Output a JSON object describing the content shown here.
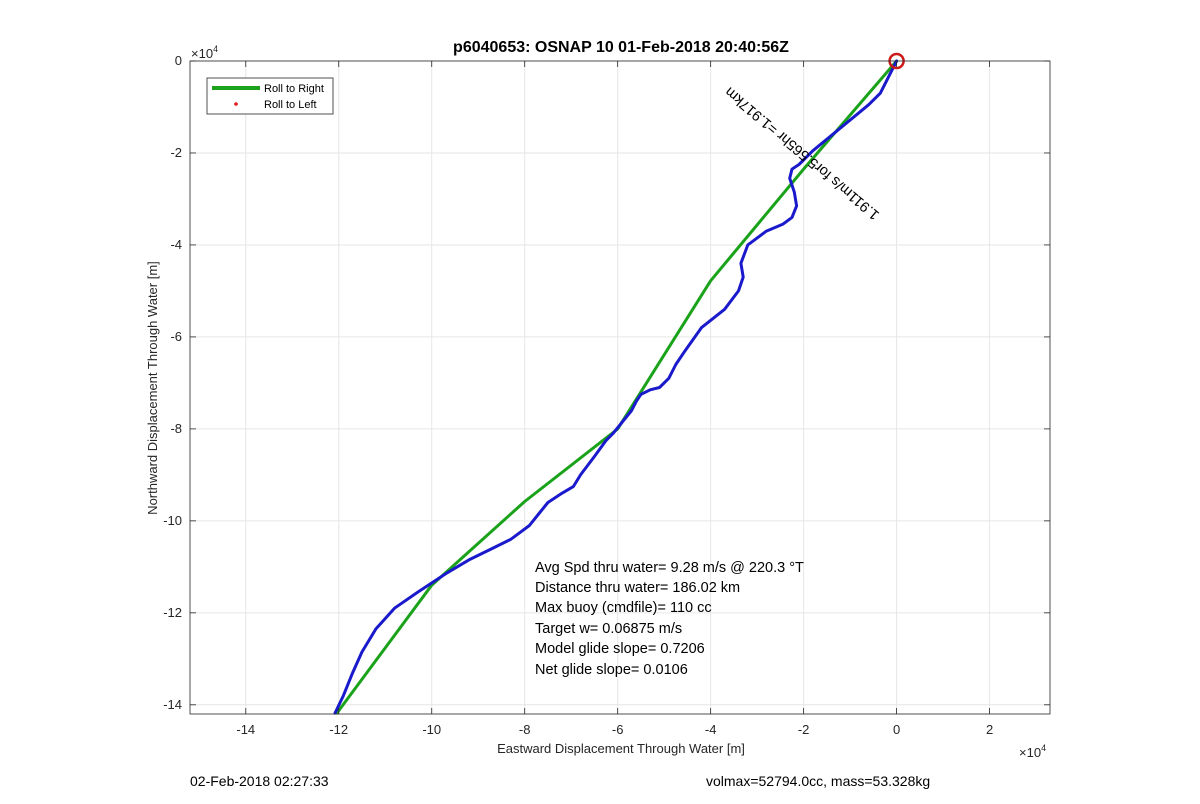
{
  "chart_data": {
    "type": "line",
    "title": "p6040653: OSNAP 10 01-Feb-2018 20:40:56Z",
    "xlabel": "Eastward Displacement Through Water [m]",
    "ylabel": "Northward Displacement Through Water [m]",
    "x_exponent_label": "×10",
    "x_exponent": "4",
    "y_exponent_label": "×10",
    "y_exponent": "4",
    "xlim": [
      -152000,
      33000
    ],
    "ylim": [
      -142000,
      0
    ],
    "xticks": [
      -140000,
      -120000,
      -100000,
      -80000,
      -60000,
      -40000,
      -20000,
      0,
      20000
    ],
    "xtick_labels": [
      "-14",
      "-12",
      "-10",
      "-8",
      "-6",
      "-4",
      "-2",
      "0",
      "2"
    ],
    "yticks": [
      0,
      -20000,
      -40000,
      -60000,
      -80000,
      -100000,
      -120000,
      -140000
    ],
    "ytick_labels": [
      "0",
      "-2",
      "-4",
      "-6",
      "-8",
      "-10",
      "-12",
      "-14"
    ],
    "grid": true,
    "legend_position": "top-left",
    "legend": [
      {
        "label": "Roll to Right",
        "color": "#1aa31a",
        "style": "line"
      },
      {
        "label": "Roll to Left",
        "color": "#e41a1a",
        "style": "dot"
      }
    ],
    "series": [
      {
        "name": "Roll to Right",
        "color": "#1aa31a",
        "x": [
          0,
          -20000,
          -40000,
          -60000,
          -80000,
          -100000,
          -120400
        ],
        "y": [
          0,
          -23500,
          -47800,
          -80000,
          -95800,
          -114000,
          -141800
        ]
      },
      {
        "color": "#1a1acc",
        "x": [
          0,
          -1500,
          -3500,
          -6000,
          -9000,
          -12000,
          -15000,
          -18000,
          -21000,
          -22500,
          -23000,
          -22000,
          -21500,
          -22500,
          -24500,
          -28000,
          -32000,
          -33500,
          -33000,
          -34000,
          -37000,
          -42000,
          -45500,
          -47500,
          -49000,
          -51000,
          -53000,
          -55000,
          -56000,
          -57000,
          -59000,
          -61000,
          -62500,
          -65000,
          -68000,
          -69500,
          -72000,
          -75000,
          -77000,
          -79000,
          -81000,
          -83000,
          -87000,
          -92000,
          -97000,
          -103000,
          -108000,
          -112000,
          -115000,
          -117000,
          -119000,
          -120800
        ],
        "y": [
          0,
          -3000,
          -7000,
          -9500,
          -12000,
          -14500,
          -17000,
          -19500,
          -22500,
          -23500,
          -25500,
          -28500,
          -31500,
          -34000,
          -35500,
          -37000,
          -40000,
          -44000,
          -47000,
          -50000,
          -54000,
          -58000,
          -63000,
          -66000,
          -69000,
          -71000,
          -71500,
          -72500,
          -74000,
          -76000,
          -78500,
          -81000,
          -82500,
          -86000,
          -90000,
          -92500,
          -94000,
          -96000,
          -98500,
          -101000,
          -102500,
          -104000,
          -106000,
          -108500,
          -111500,
          -115500,
          -119000,
          -123500,
          -128500,
          -133000,
          -138000,
          -141800
        ]
      }
    ],
    "marker": {
      "type": "circle",
      "x": 0,
      "y": 0,
      "color": "#cc1a1a"
    },
    "rotated_annotation": "1.911m/s for5.565hr =1.917km",
    "text_annotations": [
      "Avg Spd thru water=  9.28 m/s @ 220.3 °T",
      "Distance thru water= 186.02 km",
      "Max buoy (cmdfile)= 110 cc",
      "Target w= 0.06875 m/s",
      "Model glide slope= 0.7206",
      "Net glide slope= 0.0106"
    ]
  },
  "footer": {
    "left": "02-Feb-2018 02:27:33",
    "right": "volmax=52794.0cc, mass=53.328kg"
  }
}
